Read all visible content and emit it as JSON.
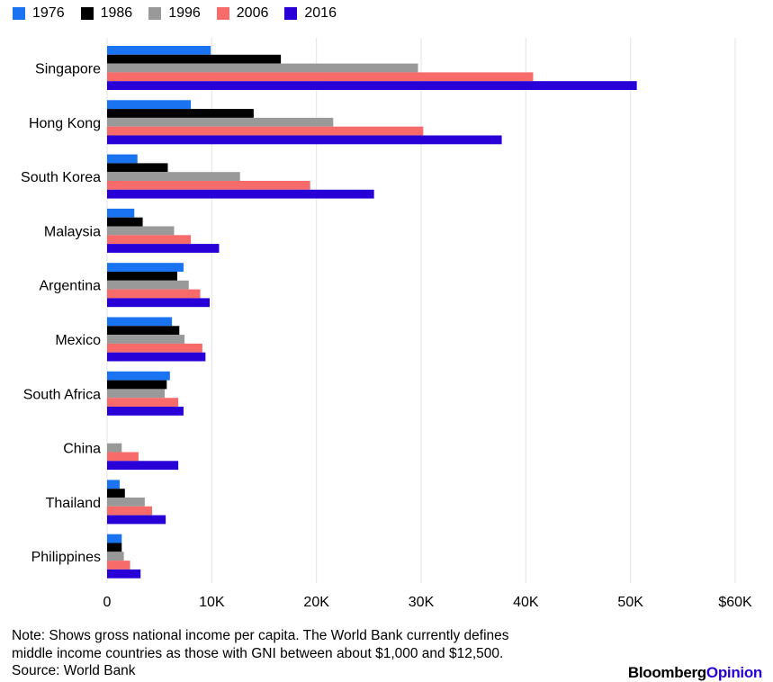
{
  "chart_data": {
    "type": "bar",
    "orientation": "horizontal",
    "categories": [
      "Singapore",
      "Hong Kong",
      "South Korea",
      "Malaysia",
      "Argentina",
      "Mexico",
      "South Africa",
      "China",
      "Thailand",
      "Philippines"
    ],
    "series": [
      {
        "name": "1976",
        "color": "#1a73f0",
        "values": [
          9900,
          8000,
          2900,
          2600,
          7300,
          6200,
          6000,
          null,
          1200,
          1400
        ]
      },
      {
        "name": "1986",
        "color": "#000000",
        "values": [
          16600,
          14000,
          5800,
          3400,
          6700,
          6900,
          5700,
          null,
          1700,
          1400
        ]
      },
      {
        "name": "1996",
        "color": "#999999",
        "values": [
          29700,
          21600,
          12700,
          6400,
          7800,
          7400,
          5500,
          1400,
          3600,
          1600
        ]
      },
      {
        "name": "2006",
        "color": "#f76b6b",
        "values": [
          40700,
          30200,
          19400,
          8000,
          8900,
          9100,
          6800,
          3000,
          4300,
          2200
        ]
      },
      {
        "name": "2016",
        "color": "#2800d7",
        "values": [
          50600,
          37700,
          25500,
          10700,
          9800,
          9400,
          7300,
          6800,
          5600,
          3200
        ]
      }
    ],
    "xlim": [
      0,
      60000
    ],
    "xticks": [
      0,
      10000,
      20000,
      30000,
      40000,
      50000,
      60000
    ],
    "xtick_labels": [
      "0",
      "10K",
      "20K",
      "30K",
      "40K",
      "50K",
      "$60K"
    ],
    "grid": true,
    "legend_position": "top-left"
  },
  "note": {
    "line1": "Note: Shows gross national income per capita. The World Bank currently defines",
    "line2": "middle income countries as those with GNI between about $1,000 and $12,500.",
    "line3": "Source: World Bank"
  },
  "logo": {
    "part1": "Bloomberg",
    "part2": "Opinion"
  }
}
